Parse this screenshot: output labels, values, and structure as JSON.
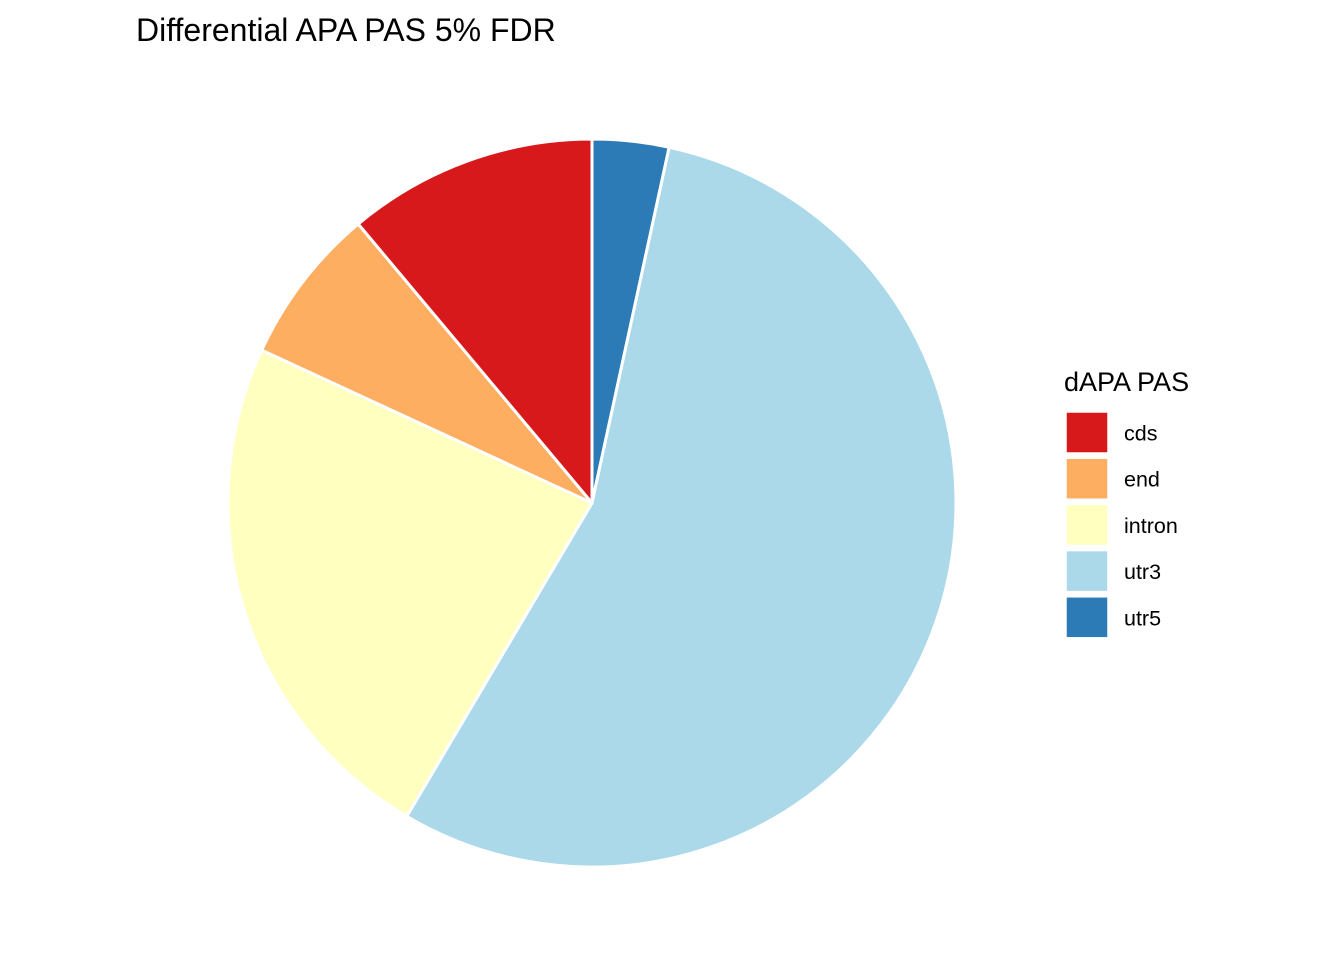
{
  "chart_data": {
    "type": "pie",
    "title": "Differential APA PAS 5% FDR",
    "legend_title": "dAPA PAS",
    "legend_position": "right",
    "start_angle": "12 o'clock",
    "direction": "clockwise",
    "categories": [
      "utr5",
      "utr3",
      "intron",
      "end",
      "cds"
    ],
    "values": [
      3.4,
      55.1,
      23.4,
      7.0,
      11.1
    ],
    "colors": [
      "#2C7BB6",
      "#ABD9E9",
      "#FFFFBF",
      "#FDAE61",
      "#D7191C"
    ],
    "legend": [
      {
        "label": "cds",
        "color": "#D7191C"
      },
      {
        "label": "end",
        "color": "#FDAE61"
      },
      {
        "label": "intron",
        "color": "#FFFFBF"
      },
      {
        "label": "utr3",
        "color": "#ABD9E9"
      },
      {
        "label": "utr5",
        "color": "#2C7BB6"
      }
    ]
  }
}
